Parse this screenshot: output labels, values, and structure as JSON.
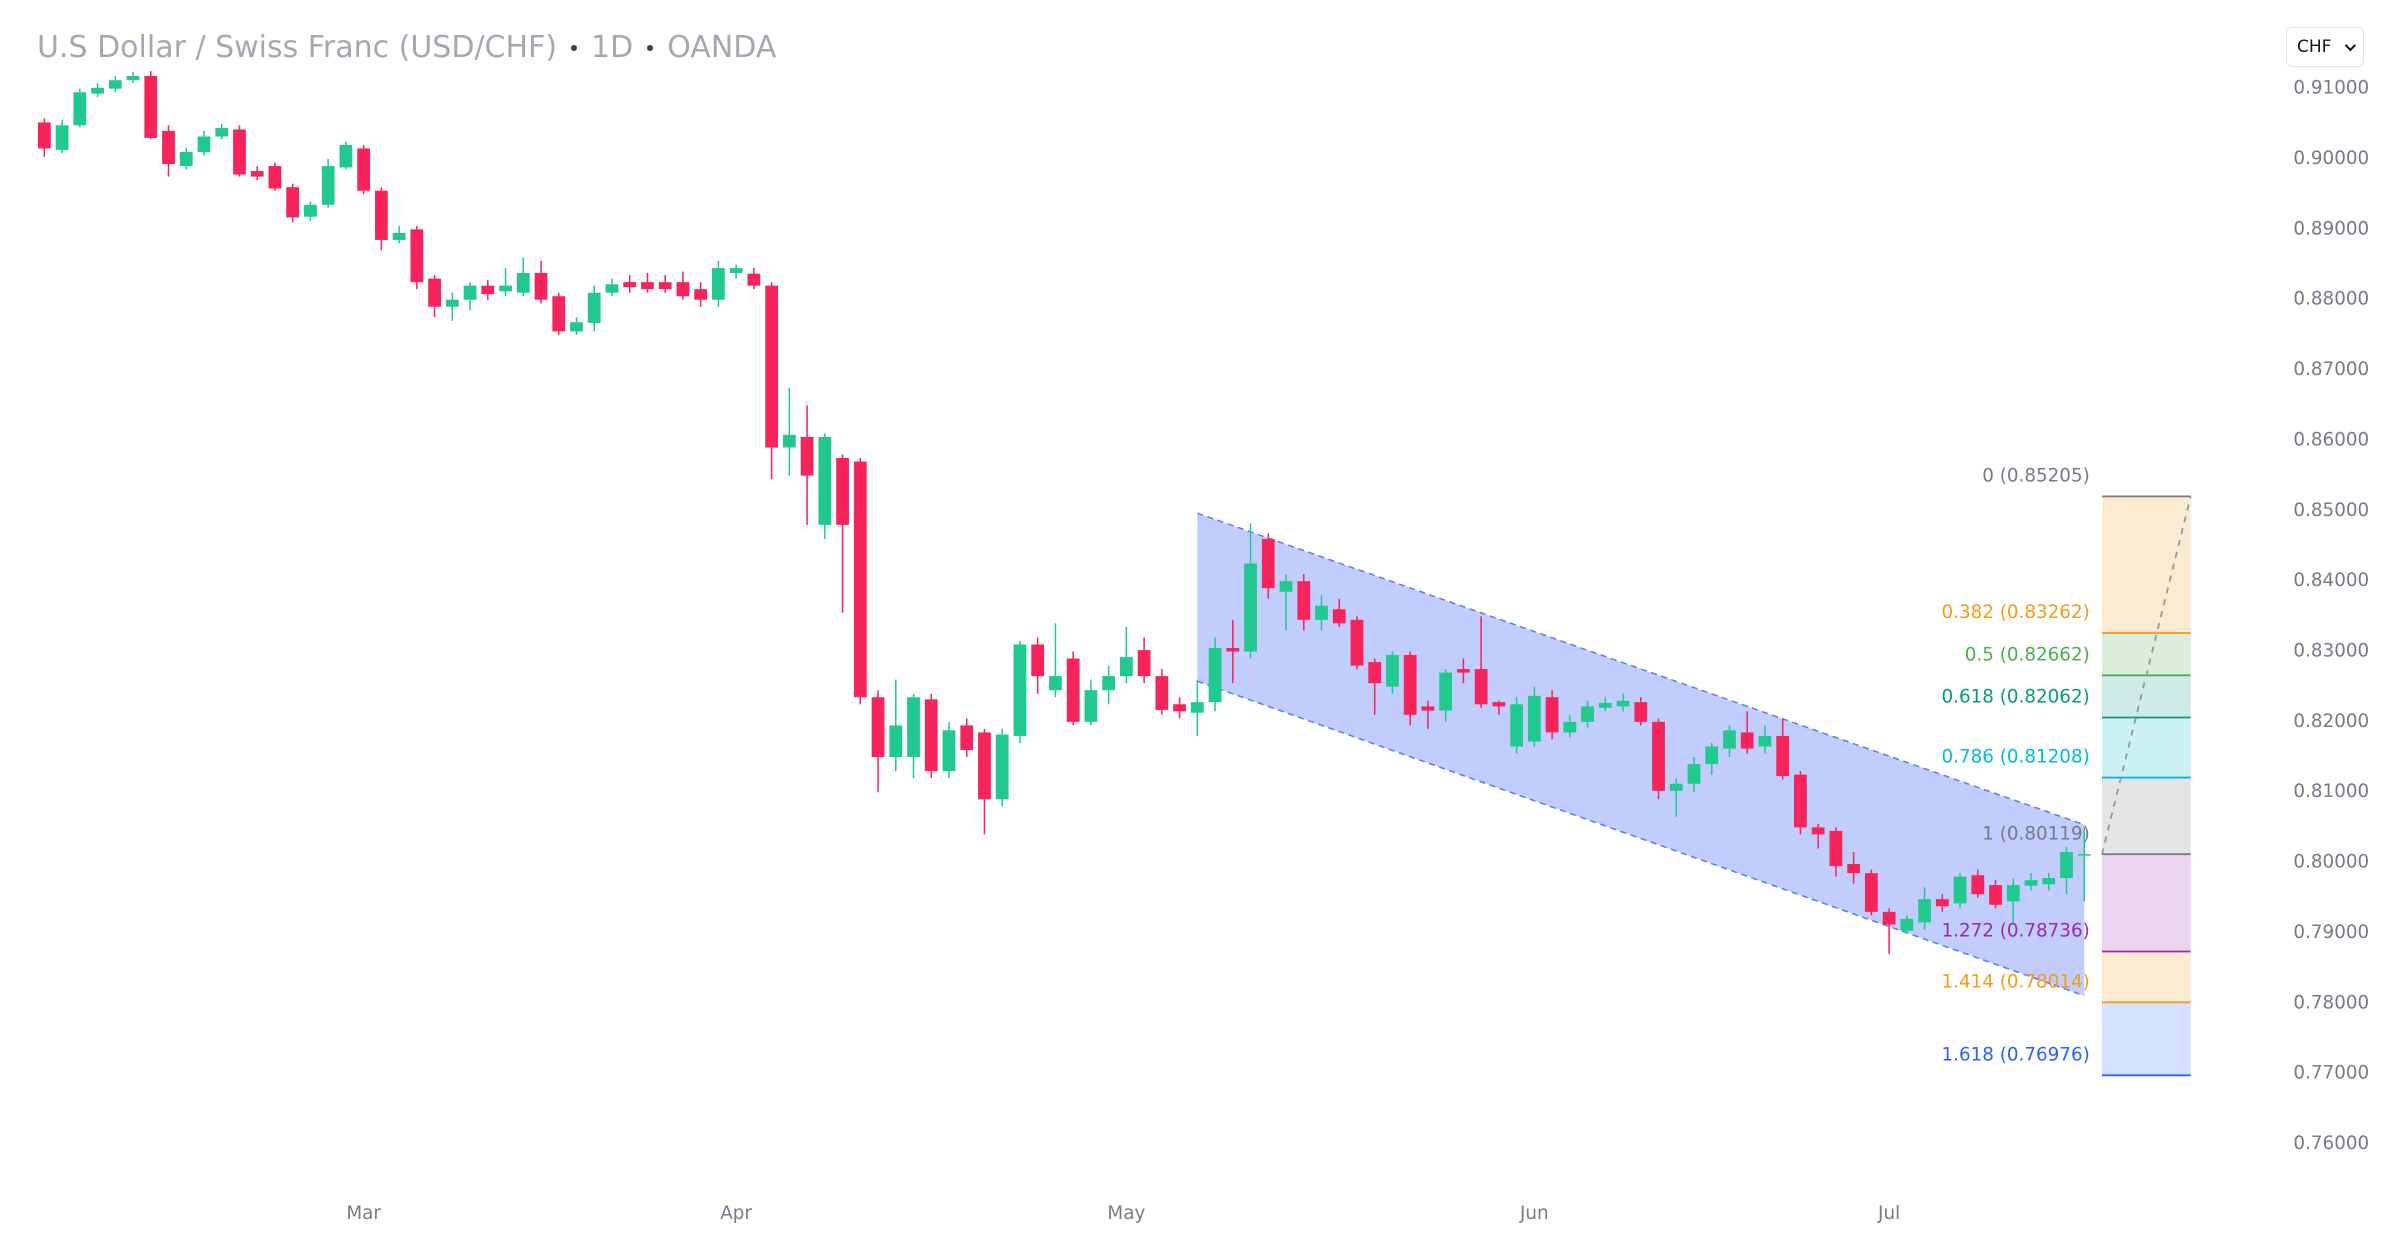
{
  "toolbar": {
    "currency": "CHF"
  },
  "chart_data": {
    "type": "candlestick",
    "title": "U.S Dollar / Swiss Franc (USD/CHF)",
    "interval": "1D",
    "source": "OANDA",
    "up_color": "#22c98e",
    "down_color": "#f5245b",
    "open": [
      0.9052,
      0.9013,
      0.9048,
      0.9093,
      0.91,
      0.9112,
      0.9118,
      0.904,
      0.899,
      0.901,
      0.9032,
      0.9042,
      0.8983,
      0.899,
      0.896,
      0.8918,
      0.8935,
      0.8988,
      0.9015,
      0.8955,
      0.8885,
      0.89,
      0.883,
      0.879,
      0.88,
      0.882,
      0.8812,
      0.881,
      0.8838,
      0.8805,
      0.8755,
      0.8767,
      0.881,
      0.8825,
      0.8825,
      0.8825,
      0.8825,
      0.8815,
      0.88,
      0.8838,
      0.8837,
      0.882,
      0.859,
      0.8605,
      0.848,
      0.8575,
      0.857,
      0.8235,
      0.815,
      0.815,
      0.8232,
      0.813,
      0.8195,
      0.8185,
      0.809,
      0.818,
      0.831,
      0.8245,
      0.829,
      0.82,
      0.8245,
      0.8265,
      0.8302,
      0.8265,
      0.8225,
      0.8213,
      0.8228,
      0.8305,
      0.83,
      0.846,
      0.8385,
      0.84,
      0.8345,
      0.836,
      0.8345,
      0.8285,
      0.825,
      0.8295,
      0.8222,
      0.8216,
      0.8275,
      0.8275,
      0.8228,
      0.8165,
      0.8172,
      0.8235,
      0.8185,
      0.82,
      0.822,
      0.8222,
      0.8228,
      0.82,
      0.8102,
      0.8112,
      0.814,
      0.8162,
      0.8185,
      0.8165,
      0.818,
      0.8125,
      0.805,
      0.8045,
      0.7998,
      0.7985,
      0.793,
      0.7903,
      0.7915,
      0.7948,
      0.7942,
      0.7982,
      0.7968,
      0.7945,
      0.7967,
      0.7969,
      0.7978,
      0.801
    ],
    "high": [
      0.9058,
      0.9056,
      0.91,
      0.9108,
      0.9118,
      0.9124,
      0.9125,
      0.9048,
      0.9016,
      0.904,
      0.905,
      0.9048,
      0.899,
      0.8995,
      0.8965,
      0.894,
      0.9,
      0.9025,
      0.902,
      0.896,
      0.8905,
      0.8905,
      0.8835,
      0.881,
      0.8825,
      0.8828,
      0.8845,
      0.886,
      0.8855,
      0.881,
      0.8775,
      0.882,
      0.883,
      0.8835,
      0.8838,
      0.8835,
      0.884,
      0.8825,
      0.8855,
      0.885,
      0.8845,
      0.8825,
      0.8675,
      0.865,
      0.861,
      0.858,
      0.8575,
      0.8245,
      0.826,
      0.824,
      0.824,
      0.82,
      0.8205,
      0.819,
      0.819,
      0.8315,
      0.832,
      0.834,
      0.83,
      0.826,
      0.828,
      0.8335,
      0.832,
      0.8275,
      0.8235,
      0.826,
      0.832,
      0.8345,
      0.8482,
      0.8468,
      0.841,
      0.841,
      0.838,
      0.8375,
      0.835,
      0.829,
      0.83,
      0.83,
      0.823,
      0.8275,
      0.829,
      0.835,
      0.823,
      0.8235,
      0.825,
      0.8245,
      0.821,
      0.823,
      0.8235,
      0.824,
      0.8235,
      0.8205,
      0.812,
      0.815,
      0.817,
      0.8195,
      0.8215,
      0.8195,
      0.8205,
      0.813,
      0.8055,
      0.805,
      0.8015,
      0.799,
      0.7935,
      0.7925,
      0.7965,
      0.7955,
      0.7985,
      0.799,
      0.7975,
      0.7978,
      0.7985,
      0.7985,
      0.8022,
      0.805
    ],
    "low": [
      0.9003,
      0.9008,
      0.9045,
      0.9088,
      0.9095,
      0.9108,
      0.9028,
      0.8975,
      0.8985,
      0.9005,
      0.9028,
      0.8975,
      0.897,
      0.8955,
      0.891,
      0.8912,
      0.893,
      0.8985,
      0.895,
      0.887,
      0.888,
      0.8815,
      0.8775,
      0.877,
      0.8785,
      0.88,
      0.8805,
      0.8805,
      0.8795,
      0.875,
      0.875,
      0.8755,
      0.8805,
      0.881,
      0.881,
      0.881,
      0.88,
      0.879,
      0.879,
      0.883,
      0.8815,
      0.8545,
      0.855,
      0.848,
      0.846,
      0.8355,
      0.8225,
      0.81,
      0.813,
      0.812,
      0.812,
      0.812,
      0.815,
      0.804,
      0.808,
      0.817,
      0.824,
      0.8235,
      0.8195,
      0.8195,
      0.8225,
      0.8255,
      0.8255,
      0.821,
      0.8205,
      0.818,
      0.8215,
      0.8255,
      0.829,
      0.8375,
      0.833,
      0.833,
      0.833,
      0.8335,
      0.8275,
      0.821,
      0.824,
      0.8195,
      0.819,
      0.82,
      0.8255,
      0.822,
      0.821,
      0.8155,
      0.8165,
      0.8175,
      0.8178,
      0.8192,
      0.8215,
      0.8215,
      0.8195,
      0.809,
      0.8065,
      0.81,
      0.8125,
      0.815,
      0.8155,
      0.8155,
      0.8118,
      0.804,
      0.802,
      0.798,
      0.797,
      0.7925,
      0.787,
      0.79,
      0.7905,
      0.793,
      0.7935,
      0.795,
      0.7935,
      0.7915,
      0.796,
      0.796,
      0.7955,
      0.7945
    ],
    "close": [
      0.9015,
      0.9048,
      0.9095,
      0.9101,
      0.9112,
      0.9118,
      0.903,
      0.8993,
      0.901,
      0.9032,
      0.9044,
      0.8978,
      0.8975,
      0.8958,
      0.8917,
      0.8935,
      0.899,
      0.902,
      0.8955,
      0.8885,
      0.8895,
      0.8825,
      0.879,
      0.88,
      0.882,
      0.8808,
      0.882,
      0.8838,
      0.88,
      0.8755,
      0.8768,
      0.881,
      0.8822,
      0.8818,
      0.8815,
      0.8815,
      0.8805,
      0.88,
      0.8845,
      0.8845,
      0.882,
      0.859,
      0.8608,
      0.855,
      0.8605,
      0.848,
      0.8235,
      0.815,
      0.8195,
      0.8235,
      0.813,
      0.8188,
      0.816,
      0.809,
      0.8182,
      0.831,
      0.8265,
      0.8265,
      0.82,
      0.8245,
      0.8265,
      0.8292,
      0.8265,
      0.8217,
      0.8215,
      0.8228,
      0.8305,
      0.83,
      0.8425,
      0.839,
      0.84,
      0.8345,
      0.8365,
      0.834,
      0.828,
      0.8255,
      0.8295,
      0.821,
      0.8216,
      0.827,
      0.827,
      0.8225,
      0.8222,
      0.8225,
      0.8237,
      0.8185,
      0.82,
      0.8222,
      0.8227,
      0.823,
      0.82,
      0.8102,
      0.8112,
      0.814,
      0.8165,
      0.8188,
      0.8162,
      0.818,
      0.8123,
      0.805,
      0.804,
      0.7995,
      0.7985,
      0.793,
      0.7912,
      0.792,
      0.7948,
      0.7938,
      0.798,
      0.7955,
      0.794,
      0.7968,
      0.7975,
      0.7978,
      0.8015,
      0.8012
    ],
    "xlim": [
      -2.5,
      124.9
    ],
    "xticks": [
      {
        "value": 18,
        "label": "Mar"
      },
      {
        "value": 39,
        "label": "Apr"
      },
      {
        "value": 61,
        "label": "May"
      },
      {
        "value": 84,
        "label": "Jun"
      },
      {
        "value": 104,
        "label": "Jul"
      }
    ],
    "ylim": [
      0.7544,
      0.9226
    ],
    "yticks": [
      {
        "value": 0.91,
        "label": "0.91000"
      },
      {
        "value": 0.9,
        "label": "0.90000"
      },
      {
        "value": 0.89,
        "label": "0.89000"
      },
      {
        "value": 0.88,
        "label": "0.88000"
      },
      {
        "value": 0.87,
        "label": "0.87000"
      },
      {
        "value": 0.86,
        "label": "0.86000"
      },
      {
        "value": 0.85,
        "label": "0.85000"
      },
      {
        "value": 0.84,
        "label": "0.84000"
      },
      {
        "value": 0.83,
        "label": "0.83000"
      },
      {
        "value": 0.82,
        "label": "0.82000"
      },
      {
        "value": 0.81,
        "label": "0.81000"
      },
      {
        "value": 0.8,
        "label": "0.80000"
      },
      {
        "value": 0.79,
        "label": "0.79000"
      },
      {
        "value": 0.78,
        "label": "0.78000"
      },
      {
        "value": 0.77,
        "label": "0.77000"
      },
      {
        "value": 0.76,
        "label": "0.76000"
      }
    ],
    "channel": {
      "x": [
        65,
        115
      ],
      "upper": [
        0.84966,
        0.80538
      ],
      "lower": [
        0.82578,
        0.78107
      ],
      "color": "#5b7cf7"
    },
    "fibonacci": {
      "x": [
        116,
        121
      ],
      "levels": [
        {
          "label": "0 (0.85205)",
          "price": 0.85205,
          "color": "#787b86"
        },
        {
          "label": "0.382 (0.83262)",
          "price": 0.83262,
          "color": "#f59c1a"
        },
        {
          "label": "0.5 (0.82662)",
          "price": 0.82662,
          "color": "#4caf50"
        },
        {
          "label": "0.618 (0.82062)",
          "price": 0.82062,
          "color": "#089981"
        },
        {
          "label": "0.786 (0.81208)",
          "price": 0.81208,
          "color": "#00bcd4"
        },
        {
          "label": "1 (0.80119)",
          "price": 0.80119,
          "color": "#787b86"
        },
        {
          "label": "1.272 (0.78736)",
          "price": 0.78736,
          "color": "#9c27b0"
        },
        {
          "label": "1.414 (0.78014)",
          "price": 0.78014,
          "color": "#f59c1a"
        },
        {
          "label": "1.618 (0.76976)",
          "price": 0.76976,
          "color": "#2962ff"
        }
      ]
    }
  }
}
